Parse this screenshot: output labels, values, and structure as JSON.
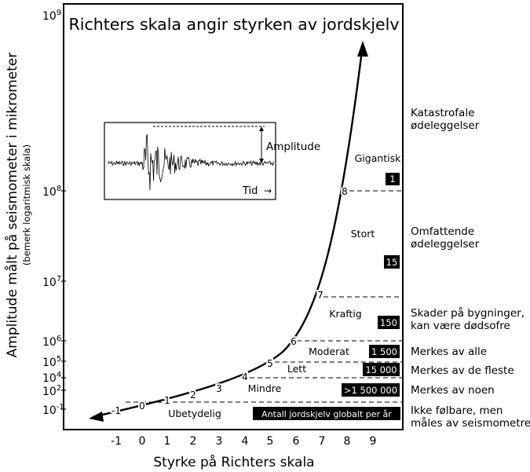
{
  "title": "Richters skala angir styrken av jordskjelv",
  "y_axis": {
    "label_main": "Amplitude målt på seismometer i mikrometer",
    "label_note": "(bemerk logaritmisk skala)",
    "ticks": [
      {
        "base": "10",
        "exp": "9"
      },
      {
        "base": "10",
        "exp": "8"
      },
      {
        "base": "10",
        "exp": "7"
      },
      {
        "base": "10",
        "exp": "6"
      },
      {
        "base": "10",
        "exp": "5"
      },
      {
        "base": "10",
        "exp": "4"
      },
      {
        "base": "10",
        "exp": "2"
      },
      {
        "base": "10",
        "exp": "-1"
      }
    ]
  },
  "x_axis": {
    "label": "Styrke på Richters skala",
    "ticks": [
      "-1",
      "0",
      "1",
      "2",
      "3",
      "4",
      "5",
      "6",
      "7",
      "8",
      "9"
    ]
  },
  "curve": {
    "point_labels": [
      "-1",
      "0",
      "1",
      "2",
      "3",
      "4",
      "5",
      "6",
      "7",
      "8"
    ]
  },
  "inset": {
    "amplitude_label": "Amplitude",
    "time_label": "Tid",
    "time_arrow": "→"
  },
  "categories": [
    {
      "name": "Gigantisk",
      "count": "1",
      "effect": "Katastrofale ødeleggelser"
    },
    {
      "name": "Stort",
      "count": "15",
      "effect": "Omfattende ødeleggelser"
    },
    {
      "name": "Kraftig",
      "count": "150",
      "effect": "Skader på bygninger, kan være dødsofre"
    },
    {
      "name": "Moderat",
      "count": "1 500",
      "effect": "Merkes av alle"
    },
    {
      "name": "Lett",
      "count": "15 000",
      "effect": "Merkes av de fleste"
    },
    {
      "name": "Mindre",
      "count": ">1 500 000",
      "effect": "Merkes av noen"
    },
    {
      "name": "Ubetydelig",
      "count": "Antall jordskjelv globalt per år",
      "effect": "Ikke følbare, men måles av seismometre"
    }
  ],
  "effects_wrapped": [
    [
      "Katastrofale",
      "ødeleggelser"
    ],
    [
      "Omfattende",
      "ødeleggelser"
    ],
    [
      "Skader på bygninger,",
      "kan være dødsofre"
    ],
    [
      "Merkes av alle"
    ],
    [
      "Merkes av de fleste"
    ],
    [
      "Merkes av noen"
    ],
    [
      "Ikke følbare, men",
      "måles av seismometre"
    ]
  ],
  "colors": {
    "ink": "#000000",
    "badge_bg": "#000000",
    "badge_text": "#ffffff",
    "paper": "#ffffff"
  }
}
